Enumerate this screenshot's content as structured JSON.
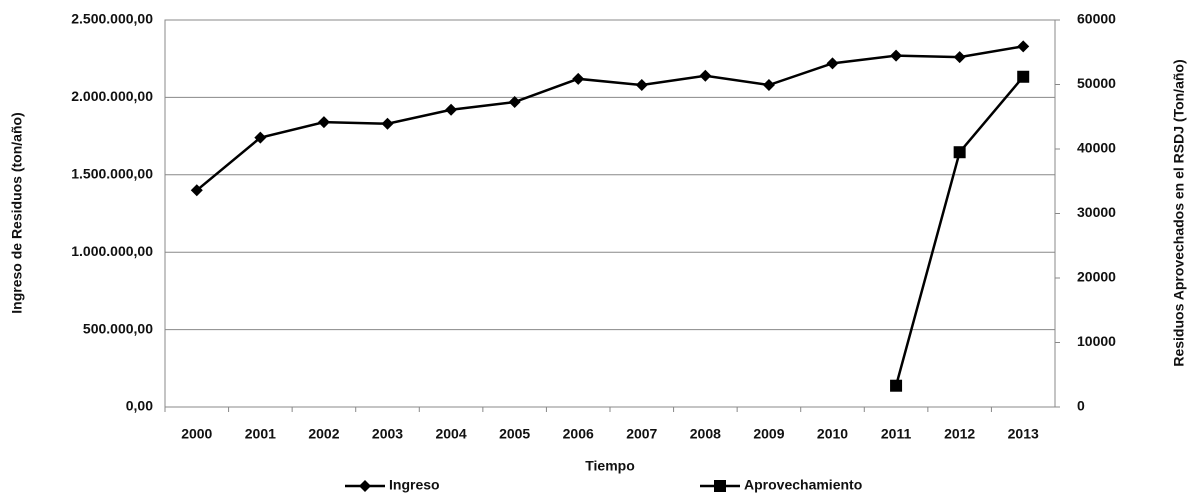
{
  "chart_data": {
    "type": "line",
    "x_label": "Tiempo",
    "y_label": "Ingreso de Residuos (ton/año)",
    "y2_label": "Residuos Aprovechados en el RSDJ (Ton/año)",
    "categories": [
      "2000",
      "2001",
      "2002",
      "2003",
      "2004",
      "2005",
      "2006",
      "2007",
      "2008",
      "2009",
      "2010",
      "2011",
      "2012",
      "2013"
    ],
    "series": [
      {
        "name": "Ingreso",
        "color": "#000000",
        "marker": "diamond",
        "values": [
          1400000,
          1740000,
          1840000,
          1830000,
          1920000,
          1970000,
          2120000,
          2080000,
          2140000,
          2080000,
          2220000,
          2270000,
          2260000,
          2330000
        ]
      },
      {
        "name": "Aprovechamiento",
        "color": "#000000",
        "marker": "square",
        "axis": "y2",
        "values": [
          null,
          null,
          null,
          null,
          null,
          null,
          null,
          null,
          null,
          null,
          null,
          3300,
          39500,
          51200
        ]
      }
    ],
    "ylim": [
      0,
      2500000
    ],
    "yticks": [
      {
        "value": 0,
        "label": "0,00"
      },
      {
        "value": 500000,
        "label": "500.000,00"
      },
      {
        "value": 1000000,
        "label": "1.000.000,00"
      },
      {
        "value": 1500000,
        "label": "1.500.000,00"
      },
      {
        "value": 2000000,
        "label": "2.000.000,00"
      },
      {
        "value": 2500000,
        "label": "2.500.000,00"
      }
    ],
    "y2lim": [
      0,
      60000
    ],
    "y2ticks": [
      0,
      10000,
      20000,
      30000,
      40000,
      50000,
      60000
    ],
    "grid": true,
    "legend": "bottom"
  }
}
